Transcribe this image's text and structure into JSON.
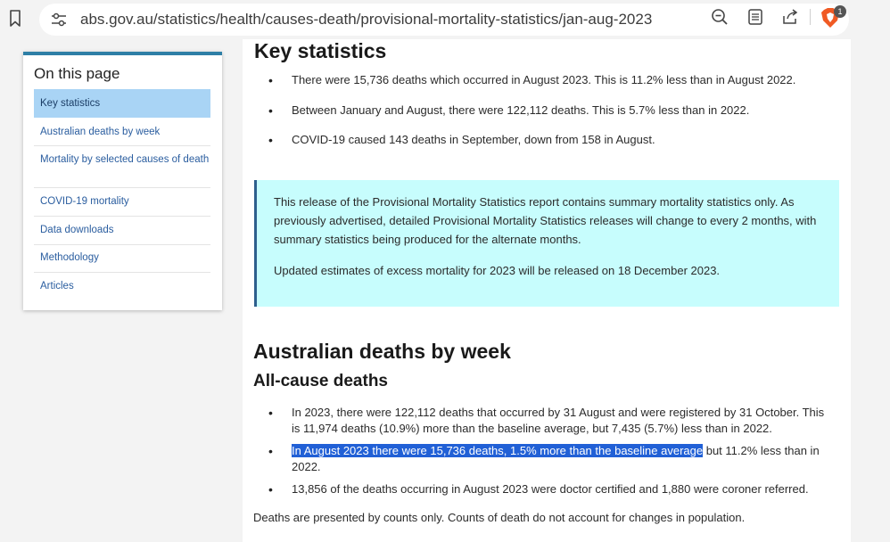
{
  "browser": {
    "url": "abs.gov.au/statistics/health/causes-death/provisional-mortality-statistics/jan-aug-2023",
    "brave_badge_count": "1"
  },
  "sidebar": {
    "title": "On this page",
    "items": [
      {
        "label": "Key statistics",
        "active": true
      },
      {
        "label": "Australian deaths by week",
        "active": false
      },
      {
        "label": "Mortality by selected causes of death",
        "active": false
      },
      {
        "label": "COVID-19 mortality",
        "active": false
      },
      {
        "label": "Data downloads",
        "active": false
      },
      {
        "label": "Methodology",
        "active": false
      },
      {
        "label": "Articles",
        "active": false
      }
    ]
  },
  "main": {
    "key_statistics": {
      "heading": "Key statistics",
      "bullets": [
        "There were 15,736 deaths which occurred in August 2023. This is 11.2% less than in August 2022.",
        "Between January and August, there were 122,112 deaths. This is 5.7% less than in 2022.",
        "COVID-19 caused 143 deaths in September, down from 158 in August."
      ]
    },
    "note": {
      "paragraph1": "This release of the Provisional Mortality Statistics report contains summary mortality statistics only. As previously advertised, detailed Provisional Mortality Statistics releases will change to every 2 months, with summary statistics being produced for the alternate months.",
      "paragraph2": "Updated estimates of excess mortality for 2023 will be released on 18 December 2023."
    },
    "weekly": {
      "heading": "Australian deaths by week",
      "subheading": "All-cause deaths",
      "bullet1": "In 2023, there were 122,112 deaths that occurred by 31 August and were registered by 31 October. This is 11,974 deaths (10.9%) more than the baseline average, but 7,435 (5.7%) less than in 2022.",
      "bullet2_highlight": "In August 2023 there were 15,736 deaths, 1.5% more than the baseline average",
      "bullet2_rest": " but 11.2% less than in 2022.",
      "bullet3": "13,856 of the deaths occurring in August 2023 were doctor certified and 1,880 were coroner referred.",
      "footer": "Deaths are presented by counts only. Counts of death do not account for changes in population."
    }
  },
  "colors": {
    "accent_bar": "#2e7fa6",
    "active_nav_bg": "#a9d4f5",
    "note_bg": "#c7fdfd",
    "highlight": "#2160d6",
    "link": "#2a5d9f"
  }
}
